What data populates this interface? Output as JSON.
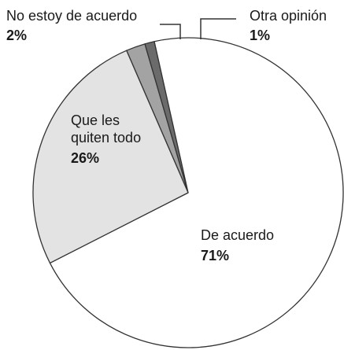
{
  "chart_data": {
    "type": "pie",
    "title": "",
    "slices": [
      {
        "label": "De acuerdo",
        "value": 71,
        "value_label": "71%",
        "color": "#ffffff"
      },
      {
        "label": "Que les quiten todo",
        "label_lines": [
          "Que les",
          "quiten todo"
        ],
        "value": 26,
        "value_label": "26%",
        "color": "#e3e3e3"
      },
      {
        "label": "No estoy de acuerdo",
        "value": 2,
        "value_label": "2%",
        "color": "#a3a3a3"
      },
      {
        "label": "Otra opinión",
        "value": 1,
        "value_label": "1%",
        "color": "#6b6b6b"
      }
    ],
    "legend": "none",
    "stroke_color": "#333333"
  }
}
